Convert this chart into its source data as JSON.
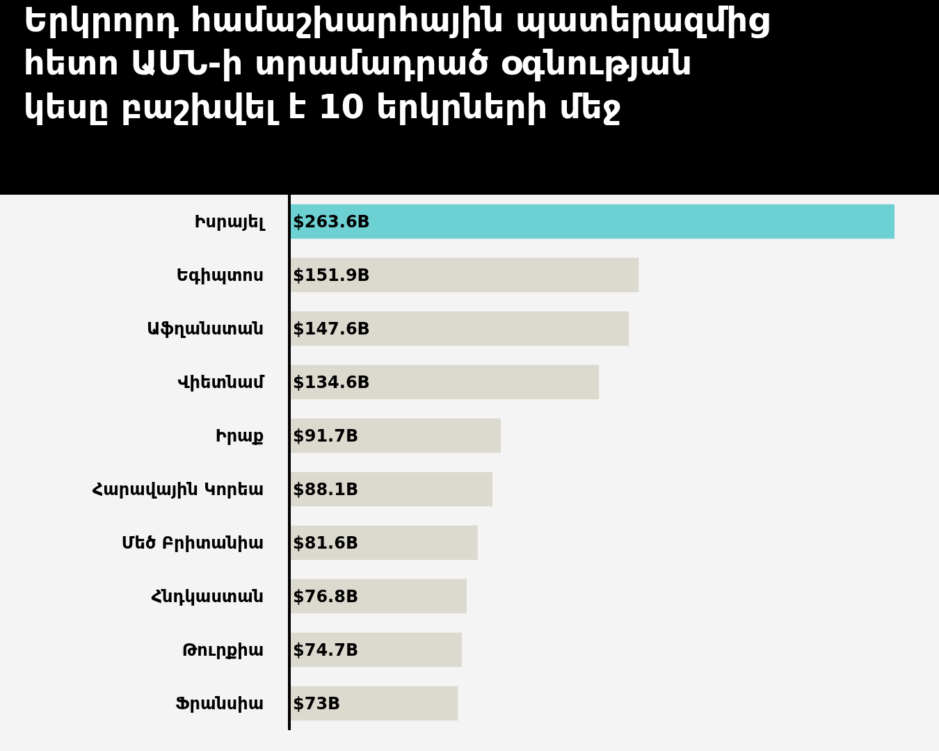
{
  "chart_data": {
    "type": "bar",
    "orientation": "horizontal",
    "title": "Երկրորդ համաշխարհային պատերազմից\nհետո ԱՄՆ-ի տրամադրած օգնության\nկեսը բաշխվել է 10 երկրների մեջ",
    "categories": [
      "Իսրայել",
      "Եգիպտոս",
      "Աֆղանստան",
      "Վիետնամ",
      "Իրաք",
      "Հարավային Կորեա",
      "Մեծ Բրիտանիա",
      "Հնդկաստան",
      "Թուրքիա",
      "Ֆրանսիա"
    ],
    "values": [
      263.6,
      151.9,
      147.6,
      134.6,
      91.7,
      88.1,
      81.6,
      76.8,
      74.7,
      73
    ],
    "value_labels": [
      "$263.6B",
      "$151.9B",
      "$147.6B",
      "$134.6B",
      "$91.7B",
      "$88.1B",
      "$81.6B",
      "$76.8B",
      "$74.7B",
      "$73B"
    ],
    "colors": [
      "#6dd0d3",
      "#dcd9cf",
      "#dcd9cf",
      "#dcd9cf",
      "#dcd9cf",
      "#dcd9cf",
      "#dcd9cf",
      "#dcd9cf",
      "#dcd9cf",
      "#dcd9cf"
    ],
    "xlim": [
      0,
      263.6
    ],
    "tick_labels": "y"
  }
}
